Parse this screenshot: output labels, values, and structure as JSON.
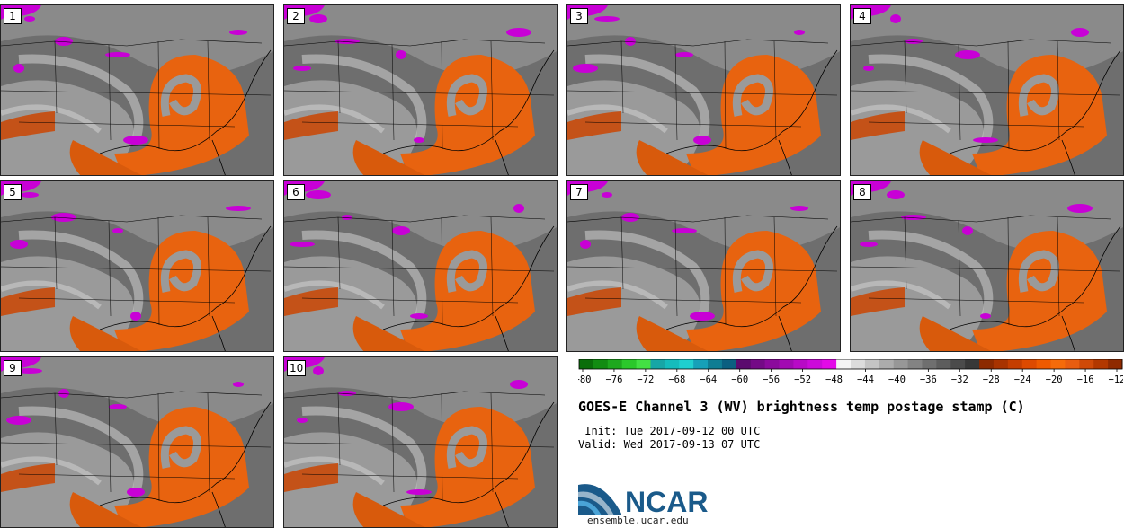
{
  "panels": [
    "1",
    "2",
    "3",
    "4",
    "5",
    "6",
    "7",
    "8",
    "9",
    "10"
  ],
  "colorbar": {
    "ticks": [
      "−80",
      "−76",
      "−72",
      "−68",
      "−64",
      "−60",
      "−56",
      "−52",
      "−48",
      "−44",
      "−40",
      "−36",
      "−32",
      "−28",
      "−24",
      "−20",
      "−16",
      "−12"
    ],
    "colors": [
      "#0a6e0a",
      "#128c12",
      "#1ea81e",
      "#2bc82b",
      "#43e043",
      "#17a6a6",
      "#15bcbc",
      "#1fcfcf",
      "#16a0b8",
      "#0f7d93",
      "#0b5f80",
      "#5b0b6e",
      "#740a86",
      "#8b0a9c",
      "#a20ab2",
      "#b80ac6",
      "#cc0ada",
      "#e30ae8",
      "#f4f4f4",
      "#dcdcdc",
      "#c4c4c4",
      "#acacac",
      "#979797",
      "#838383",
      "#6f6f6f",
      "#5d5d5d",
      "#4b4b4b",
      "#383838",
      "#8c2a00",
      "#a83300",
      "#c43e00",
      "#dd4a00",
      "#ee5a00",
      "#f56b0a",
      "#e85d10",
      "#cf4a08",
      "#b23800",
      "#8f2a00"
    ]
  },
  "title": "GOES-E Channel 3 (WV) brightness temp postage stamp (C)",
  "init": " Init: Tue 2017-09-12 00 UTC",
  "valid": "Valid: Wed 2017-09-13 07 UTC",
  "logo": {
    "text": "NCAR",
    "color": "#1a5a8a",
    "accent": "#4aa3d6"
  },
  "site": "ensemble.ucar.edu"
}
